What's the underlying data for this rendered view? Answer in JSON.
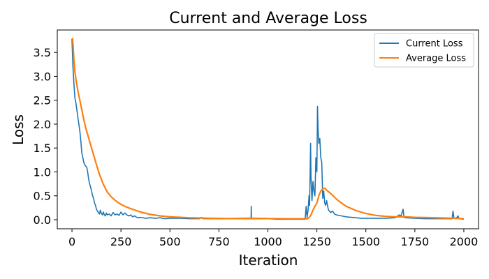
{
  "chart_data": {
    "type": "line",
    "title": "Current and Average Loss",
    "xlabel": "Iteration",
    "ylabel": "Loss",
    "xlim": [
      -75,
      2075
    ],
    "ylim": [
      -0.19,
      3.97
    ],
    "xticks": [
      0,
      250,
      500,
      750,
      1000,
      1250,
      1500,
      1750,
      2000
    ],
    "yticks": [
      0.0,
      0.5,
      1.0,
      1.5,
      2.0,
      2.5,
      3.0,
      3.5
    ],
    "grid": false,
    "legend_position": "top-right",
    "series": [
      {
        "name": "Current Loss",
        "color": "#1f77b4",
        "points": [
          [
            0,
            3.78
          ],
          [
            5,
            3.2
          ],
          [
            10,
            2.85
          ],
          [
            15,
            2.55
          ],
          [
            20,
            2.45
          ],
          [
            25,
            2.3
          ],
          [
            30,
            2.15
          ],
          [
            35,
            2.0
          ],
          [
            40,
            1.85
          ],
          [
            45,
            1.65
          ],
          [
            50,
            1.4
          ],
          [
            55,
            1.3
          ],
          [
            60,
            1.2
          ],
          [
            65,
            1.15
          ],
          [
            70,
            1.12
          ],
          [
            75,
            1.1
          ],
          [
            80,
            1.0
          ],
          [
            85,
            0.85
          ],
          [
            90,
            0.75
          ],
          [
            95,
            0.68
          ],
          [
            100,
            0.6
          ],
          [
            105,
            0.5
          ],
          [
            110,
            0.45
          ],
          [
            115,
            0.35
          ],
          [
            120,
            0.3
          ],
          [
            125,
            0.22
          ],
          [
            130,
            0.18
          ],
          [
            135,
            0.15
          ],
          [
            140,
            0.12
          ],
          [
            145,
            0.2
          ],
          [
            150,
            0.13
          ],
          [
            155,
            0.1
          ],
          [
            160,
            0.16
          ],
          [
            165,
            0.1
          ],
          [
            170,
            0.08
          ],
          [
            175,
            0.14
          ],
          [
            180,
            0.1
          ],
          [
            190,
            0.12
          ],
          [
            200,
            0.08
          ],
          [
            210,
            0.15
          ],
          [
            220,
            0.1
          ],
          [
            230,
            0.12
          ],
          [
            240,
            0.09
          ],
          [
            250,
            0.16
          ],
          [
            260,
            0.1
          ],
          [
            270,
            0.14
          ],
          [
            275,
            0.12
          ],
          [
            280,
            0.1
          ],
          [
            290,
            0.08
          ],
          [
            300,
            0.1
          ],
          [
            310,
            0.06
          ],
          [
            320,
            0.08
          ],
          [
            330,
            0.05
          ],
          [
            340,
            0.04
          ],
          [
            350,
            0.05
          ],
          [
            375,
            0.03
          ],
          [
            400,
            0.04
          ],
          [
            425,
            0.03
          ],
          [
            450,
            0.04
          ],
          [
            475,
            0.02
          ],
          [
            500,
            0.03
          ],
          [
            550,
            0.03
          ],
          [
            600,
            0.02
          ],
          [
            650,
            0.02
          ],
          [
            660,
            0.05
          ],
          [
            670,
            0.02
          ],
          [
            700,
            0.02
          ],
          [
            750,
            0.02
          ],
          [
            800,
            0.02
          ],
          [
            850,
            0.02
          ],
          [
            900,
            0.02
          ],
          [
            914,
            0.02
          ],
          [
            915,
            0.28
          ],
          [
            916,
            0.02
          ],
          [
            950,
            0.02
          ],
          [
            1000,
            0.02
          ],
          [
            1050,
            0.01
          ],
          [
            1100,
            0.01
          ],
          [
            1150,
            0.01
          ],
          [
            1190,
            0.01
          ],
          [
            1195,
            0.28
          ],
          [
            1200,
            0.05
          ],
          [
            1205,
            0.2
          ],
          [
            1210,
            0.5
          ],
          [
            1213,
            0.3
          ],
          [
            1215,
            0.85
          ],
          [
            1218,
            1.6
          ],
          [
            1220,
            0.9
          ],
          [
            1225,
            0.4
          ],
          [
            1230,
            0.8
          ],
          [
            1235,
            0.6
          ],
          [
            1240,
            0.5
          ],
          [
            1245,
            1.3
          ],
          [
            1250,
            1.0
          ],
          [
            1253,
            2.37
          ],
          [
            1256,
            1.9
          ],
          [
            1260,
            1.6
          ],
          [
            1265,
            1.7
          ],
          [
            1270,
            1.3
          ],
          [
            1275,
            1.2
          ],
          [
            1280,
            0.45
          ],
          [
            1285,
            0.6
          ],
          [
            1290,
            0.35
          ],
          [
            1295,
            0.3
          ],
          [
            1300,
            0.4
          ],
          [
            1305,
            0.28
          ],
          [
            1310,
            0.2
          ],
          [
            1320,
            0.15
          ],
          [
            1330,
            0.18
          ],
          [
            1340,
            0.12
          ],
          [
            1350,
            0.1
          ],
          [
            1375,
            0.08
          ],
          [
            1400,
            0.06
          ],
          [
            1425,
            0.05
          ],
          [
            1450,
            0.04
          ],
          [
            1475,
            0.03
          ],
          [
            1500,
            0.03
          ],
          [
            1550,
            0.03
          ],
          [
            1600,
            0.03
          ],
          [
            1650,
            0.04
          ],
          [
            1670,
            0.1
          ],
          [
            1680,
            0.08
          ],
          [
            1690,
            0.22
          ],
          [
            1695,
            0.05
          ],
          [
            1700,
            0.04
          ],
          [
            1750,
            0.03
          ],
          [
            1800,
            0.02
          ],
          [
            1850,
            0.02
          ],
          [
            1900,
            0.02
          ],
          [
            1940,
            0.02
          ],
          [
            1945,
            0.18
          ],
          [
            1950,
            0.03
          ],
          [
            1960,
            0.02
          ],
          [
            1970,
            0.08
          ],
          [
            1975,
            0.02
          ],
          [
            2000,
            0.01
          ]
        ]
      },
      {
        "name": "Average Loss",
        "color": "#ff7f0e",
        "points": [
          [
            0,
            3.78
          ],
          [
            3,
            3.79
          ],
          [
            5,
            3.7
          ],
          [
            10,
            3.35
          ],
          [
            15,
            3.1
          ],
          [
            20,
            2.95
          ],
          [
            30,
            2.7
          ],
          [
            40,
            2.5
          ],
          [
            50,
            2.3
          ],
          [
            60,
            2.1
          ],
          [
            70,
            1.92
          ],
          [
            80,
            1.78
          ],
          [
            100,
            1.5
          ],
          [
            120,
            1.22
          ],
          [
            140,
            0.95
          ],
          [
            160,
            0.74
          ],
          [
            180,
            0.58
          ],
          [
            200,
            0.48
          ],
          [
            225,
            0.39
          ],
          [
            250,
            0.32
          ],
          [
            275,
            0.27
          ],
          [
            300,
            0.23
          ],
          [
            350,
            0.16
          ],
          [
            400,
            0.11
          ],
          [
            450,
            0.08
          ],
          [
            500,
            0.06
          ],
          [
            600,
            0.04
          ],
          [
            700,
            0.03
          ],
          [
            800,
            0.025
          ],
          [
            900,
            0.03
          ],
          [
            1000,
            0.025
          ],
          [
            1100,
            0.02
          ],
          [
            1200,
            0.02
          ],
          [
            1210,
            0.04
          ],
          [
            1220,
            0.1
          ],
          [
            1230,
            0.2
          ],
          [
            1240,
            0.28
          ],
          [
            1250,
            0.35
          ],
          [
            1260,
            0.5
          ],
          [
            1270,
            0.6
          ],
          [
            1280,
            0.65
          ],
          [
            1290,
            0.66
          ],
          [
            1300,
            0.62
          ],
          [
            1325,
            0.53
          ],
          [
            1350,
            0.43
          ],
          [
            1375,
            0.35
          ],
          [
            1400,
            0.28
          ],
          [
            1450,
            0.19
          ],
          [
            1500,
            0.13
          ],
          [
            1550,
            0.09
          ],
          [
            1600,
            0.07
          ],
          [
            1650,
            0.06
          ],
          [
            1700,
            0.06
          ],
          [
            1750,
            0.05
          ],
          [
            1800,
            0.045
          ],
          [
            1850,
            0.04
          ],
          [
            1900,
            0.035
          ],
          [
            1950,
            0.03
          ],
          [
            2000,
            0.02
          ]
        ]
      }
    ]
  }
}
